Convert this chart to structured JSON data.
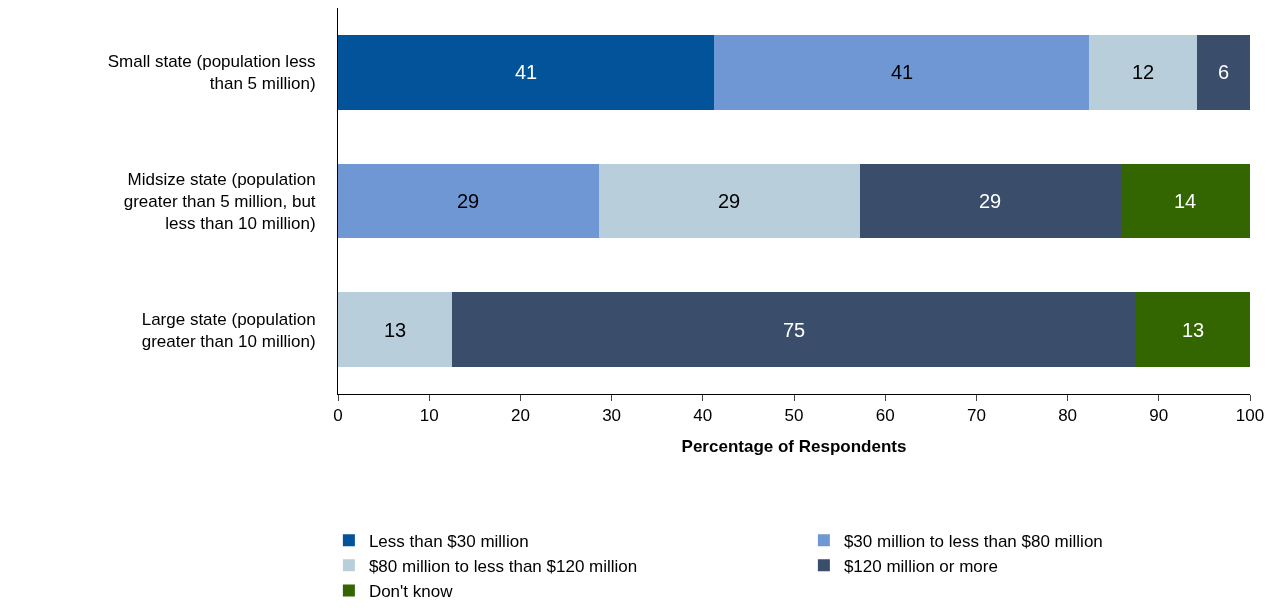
{
  "chart_data": {
    "type": "bar",
    "orientation": "horizontal",
    "stacked": true,
    "xlabel": "Percentage of Respondents",
    "categories": [
      "Small state (population less than 5 million)",
      "Midsize state (population greater than 5 million, but less than 10 million)",
      "Large state (population greater than 10 million)"
    ],
    "series": [
      {
        "name": "Less than $30 million",
        "color": "#02539a",
        "values": [
          41.2,
          null,
          null
        ],
        "value_labels": [
          "41",
          null,
          null
        ]
      },
      {
        "name": "$30 million to less than $80 million",
        "color": "#6f97d3",
        "values": [
          41.2,
          28.6,
          null
        ],
        "value_labels": [
          "41",
          "29",
          null
        ]
      },
      {
        "name": "$80 million to less than $120 million",
        "color": "#b8cedb",
        "values": [
          11.8,
          28.6,
          12.5
        ],
        "value_labels": [
          "12",
          "29",
          "13"
        ]
      },
      {
        "name": "$120 million or more",
        "color": "#3a4d6b",
        "values": [
          5.8,
          28.6,
          75
        ],
        "value_labels": [
          "6",
          "29",
          "75"
        ]
      },
      {
        "name": "Don't know",
        "color": "#336600",
        "values": [
          null,
          14.2,
          12.5
        ],
        "value_labels": [
          null,
          "14",
          "13"
        ]
      }
    ],
    "xlim": [
      0,
      100
    ],
    "xticks": [
      0,
      10,
      20,
      30,
      40,
      50,
      60,
      70,
      80,
      90,
      100
    ],
    "legend": "bottom"
  }
}
